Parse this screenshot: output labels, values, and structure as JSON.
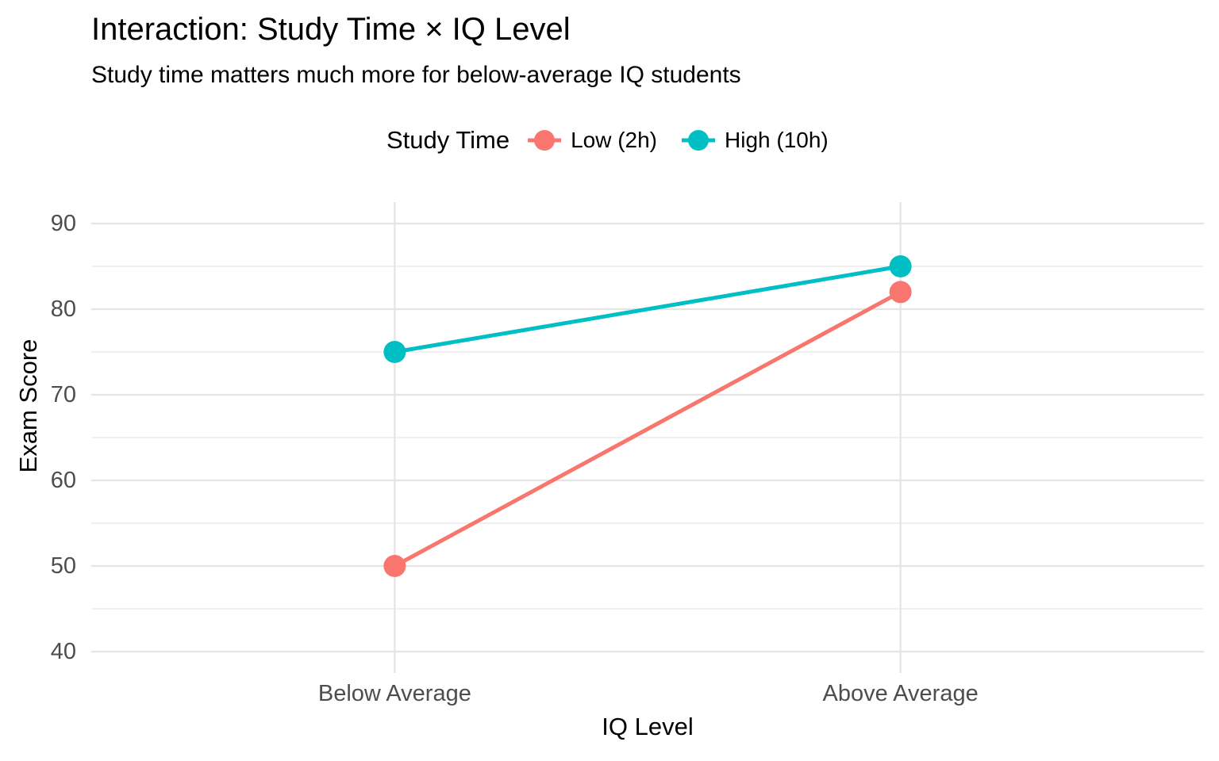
{
  "chart_data": {
    "type": "line",
    "title": "Interaction: Study Time × IQ Level",
    "subtitle": "Study time matters much more for below-average IQ students",
    "xlabel": "IQ Level",
    "ylabel": "Exam Score",
    "categories": [
      "Below Average",
      "Above Average"
    ],
    "series": [
      {
        "name": "Low (2h)",
        "values": [
          50,
          82
        ],
        "color": "#F8766D"
      },
      {
        "name": "High (10h)",
        "values": [
          75,
          85
        ],
        "color": "#00BFC4"
      }
    ],
    "legend": {
      "title": "Study Time",
      "position": "top-center"
    },
    "y_ticks": [
      90,
      80,
      70,
      60,
      50,
      40
    ],
    "y_minor_ticks": [
      85,
      75,
      65,
      55,
      45
    ],
    "ylim": [
      37.5,
      92.5
    ],
    "grid": true,
    "style": {
      "background": "#FFFFFF",
      "grid_major_color": "#E4E4E4",
      "grid_minor_color": "#ECECEC",
      "tick_label_color": "#4D4D4D",
      "text_color": "#000000"
    }
  }
}
